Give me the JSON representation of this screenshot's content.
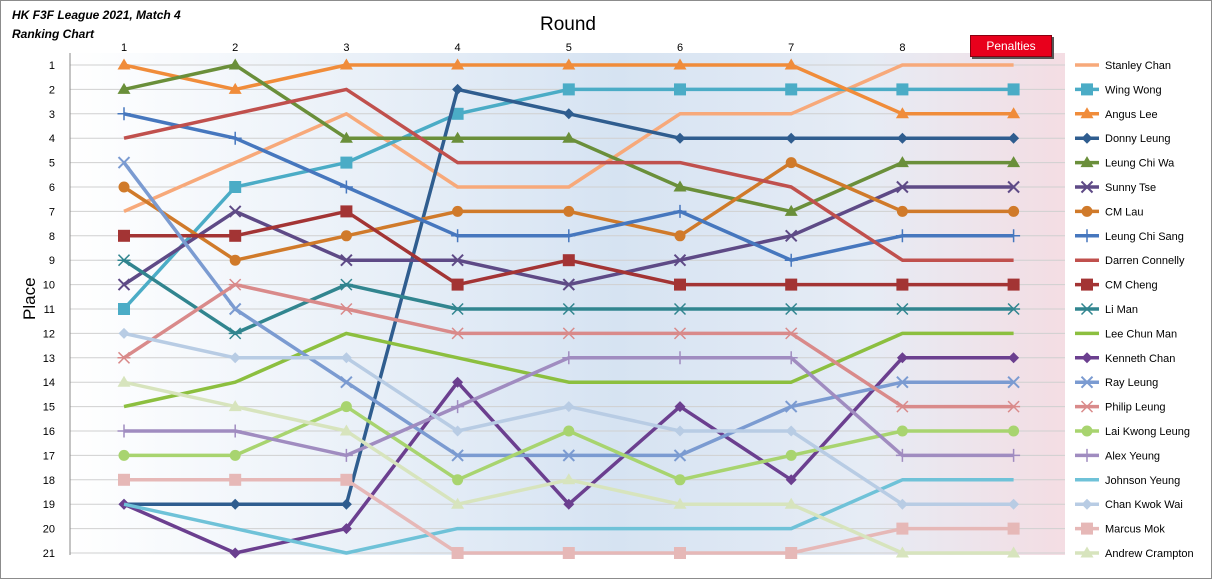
{
  "header": {
    "title_line1": "HK F3F League 2021, Match 4",
    "title_line2": "Ranking Chart",
    "penalties_button": "Penalties"
  },
  "chart_data": {
    "type": "line",
    "title": "HK F3F League 2021, Match 4 Ranking Chart",
    "xlabel": "Round",
    "ylabel": "Place",
    "x": [
      "1",
      "2",
      "3",
      "4",
      "5",
      "6",
      "7",
      "8",
      ""
    ],
    "y_ticks": [
      "1",
      "2",
      "3",
      "4",
      "5",
      "6",
      "7",
      "8",
      "9",
      "10",
      "11",
      "12",
      "13",
      "14",
      "15",
      "16",
      "17",
      "18",
      "19",
      "20",
      "21"
    ],
    "ylim": [
      1,
      21
    ],
    "y_inverted": true,
    "grid": "horizontal",
    "legend_position": "right",
    "series": [
      {
        "name": "Stanley Chan",
        "color": "#f7a97a",
        "marker": "none",
        "values": [
          7,
          5,
          3,
          6,
          6,
          3,
          3,
          1,
          1
        ]
      },
      {
        "name": "Wing Wong",
        "color": "#4bacc6",
        "marker": "square",
        "values": [
          11,
          6,
          5,
          3,
          2,
          2,
          2,
          2,
          2
        ]
      },
      {
        "name": "Angus Lee",
        "color": "#f08c3a",
        "marker": "triangle",
        "values": [
          1,
          2,
          1,
          1,
          1,
          1,
          1,
          3,
          3
        ]
      },
      {
        "name": "Donny Leung",
        "color": "#2f5d8f",
        "marker": "diamond",
        "values": [
          19,
          19,
          19,
          2,
          3,
          4,
          4,
          4,
          4
        ]
      },
      {
        "name": "Leung Chi Wa",
        "color": "#6a8f3a",
        "marker": "triangle",
        "values": [
          2,
          1,
          4,
          4,
          4,
          6,
          7,
          5,
          5
        ]
      },
      {
        "name": "Sunny Tse",
        "color": "#5e4a86",
        "marker": "x",
        "values": [
          10,
          7,
          9,
          9,
          10,
          9,
          8,
          6,
          6
        ]
      },
      {
        "name": "CM Lau",
        "color": "#d07a2a",
        "marker": "circle",
        "values": [
          6,
          9,
          8,
          7,
          7,
          8,
          5,
          7,
          7
        ]
      },
      {
        "name": "Leung Chi Sang",
        "color": "#4677be",
        "marker": "plus",
        "values": [
          3,
          4,
          6,
          8,
          8,
          7,
          9,
          8,
          8
        ]
      },
      {
        "name": "Darren Connelly",
        "color": "#c0504d",
        "marker": "none",
        "values": [
          4,
          3,
          2,
          5,
          5,
          5,
          6,
          9,
          9
        ]
      },
      {
        "name": "CM Cheng",
        "color": "#a33434",
        "marker": "square",
        "values": [
          8,
          8,
          7,
          10,
          9,
          10,
          10,
          10,
          10
        ]
      },
      {
        "name": "Li Man",
        "color": "#31858f",
        "marker": "star",
        "values": [
          9,
          12,
          10,
          11,
          11,
          11,
          11,
          11,
          11
        ]
      },
      {
        "name": "Lee Chun Man",
        "color": "#8cbf3f",
        "marker": "none",
        "values": [
          15,
          14,
          12,
          13,
          14,
          14,
          14,
          12,
          12
        ]
      },
      {
        "name": "Kenneth Chan",
        "color": "#6b3f8f",
        "marker": "diamond",
        "values": [
          19,
          21,
          20,
          14,
          19,
          15,
          18,
          13,
          13
        ]
      },
      {
        "name": "Ray Leung",
        "color": "#7b9bd1",
        "marker": "x",
        "values": [
          5,
          11,
          14,
          17,
          17,
          17,
          15,
          14,
          14
        ]
      },
      {
        "name": "Philip Leung",
        "color": "#d98a8a",
        "marker": "star",
        "values": [
          13,
          10,
          11,
          12,
          12,
          12,
          12,
          15,
          15
        ]
      },
      {
        "name": "Lai Kwong Leung",
        "color": "#a8d46f",
        "marker": "circle",
        "values": [
          17,
          17,
          15,
          18,
          16,
          18,
          17,
          16,
          16
        ]
      },
      {
        "name": "Alex Yeung",
        "color": "#a08cc0",
        "marker": "plus",
        "values": [
          16,
          16,
          17,
          15,
          13,
          13,
          13,
          17,
          17
        ]
      },
      {
        "name": "Johnson Yeung",
        "color": "#6fc2d8",
        "marker": "none",
        "values": [
          19,
          20,
          21,
          20,
          20,
          20,
          20,
          18,
          18
        ]
      },
      {
        "name": "Chan Kwok Wai",
        "color": "#b8cce4",
        "marker": "diamond",
        "values": [
          12,
          13,
          13,
          16,
          15,
          16,
          16,
          19,
          19
        ]
      },
      {
        "name": "Marcus Mok",
        "color": "#e6b8b7",
        "marker": "square",
        "values": [
          18,
          18,
          18,
          21,
          21,
          21,
          21,
          20,
          20
        ]
      },
      {
        "name": "Andrew Crampton",
        "color": "#d7e4bd",
        "marker": "triangle",
        "values": [
          14,
          15,
          16,
          19,
          18,
          19,
          19,
          21,
          21
        ]
      }
    ]
  }
}
